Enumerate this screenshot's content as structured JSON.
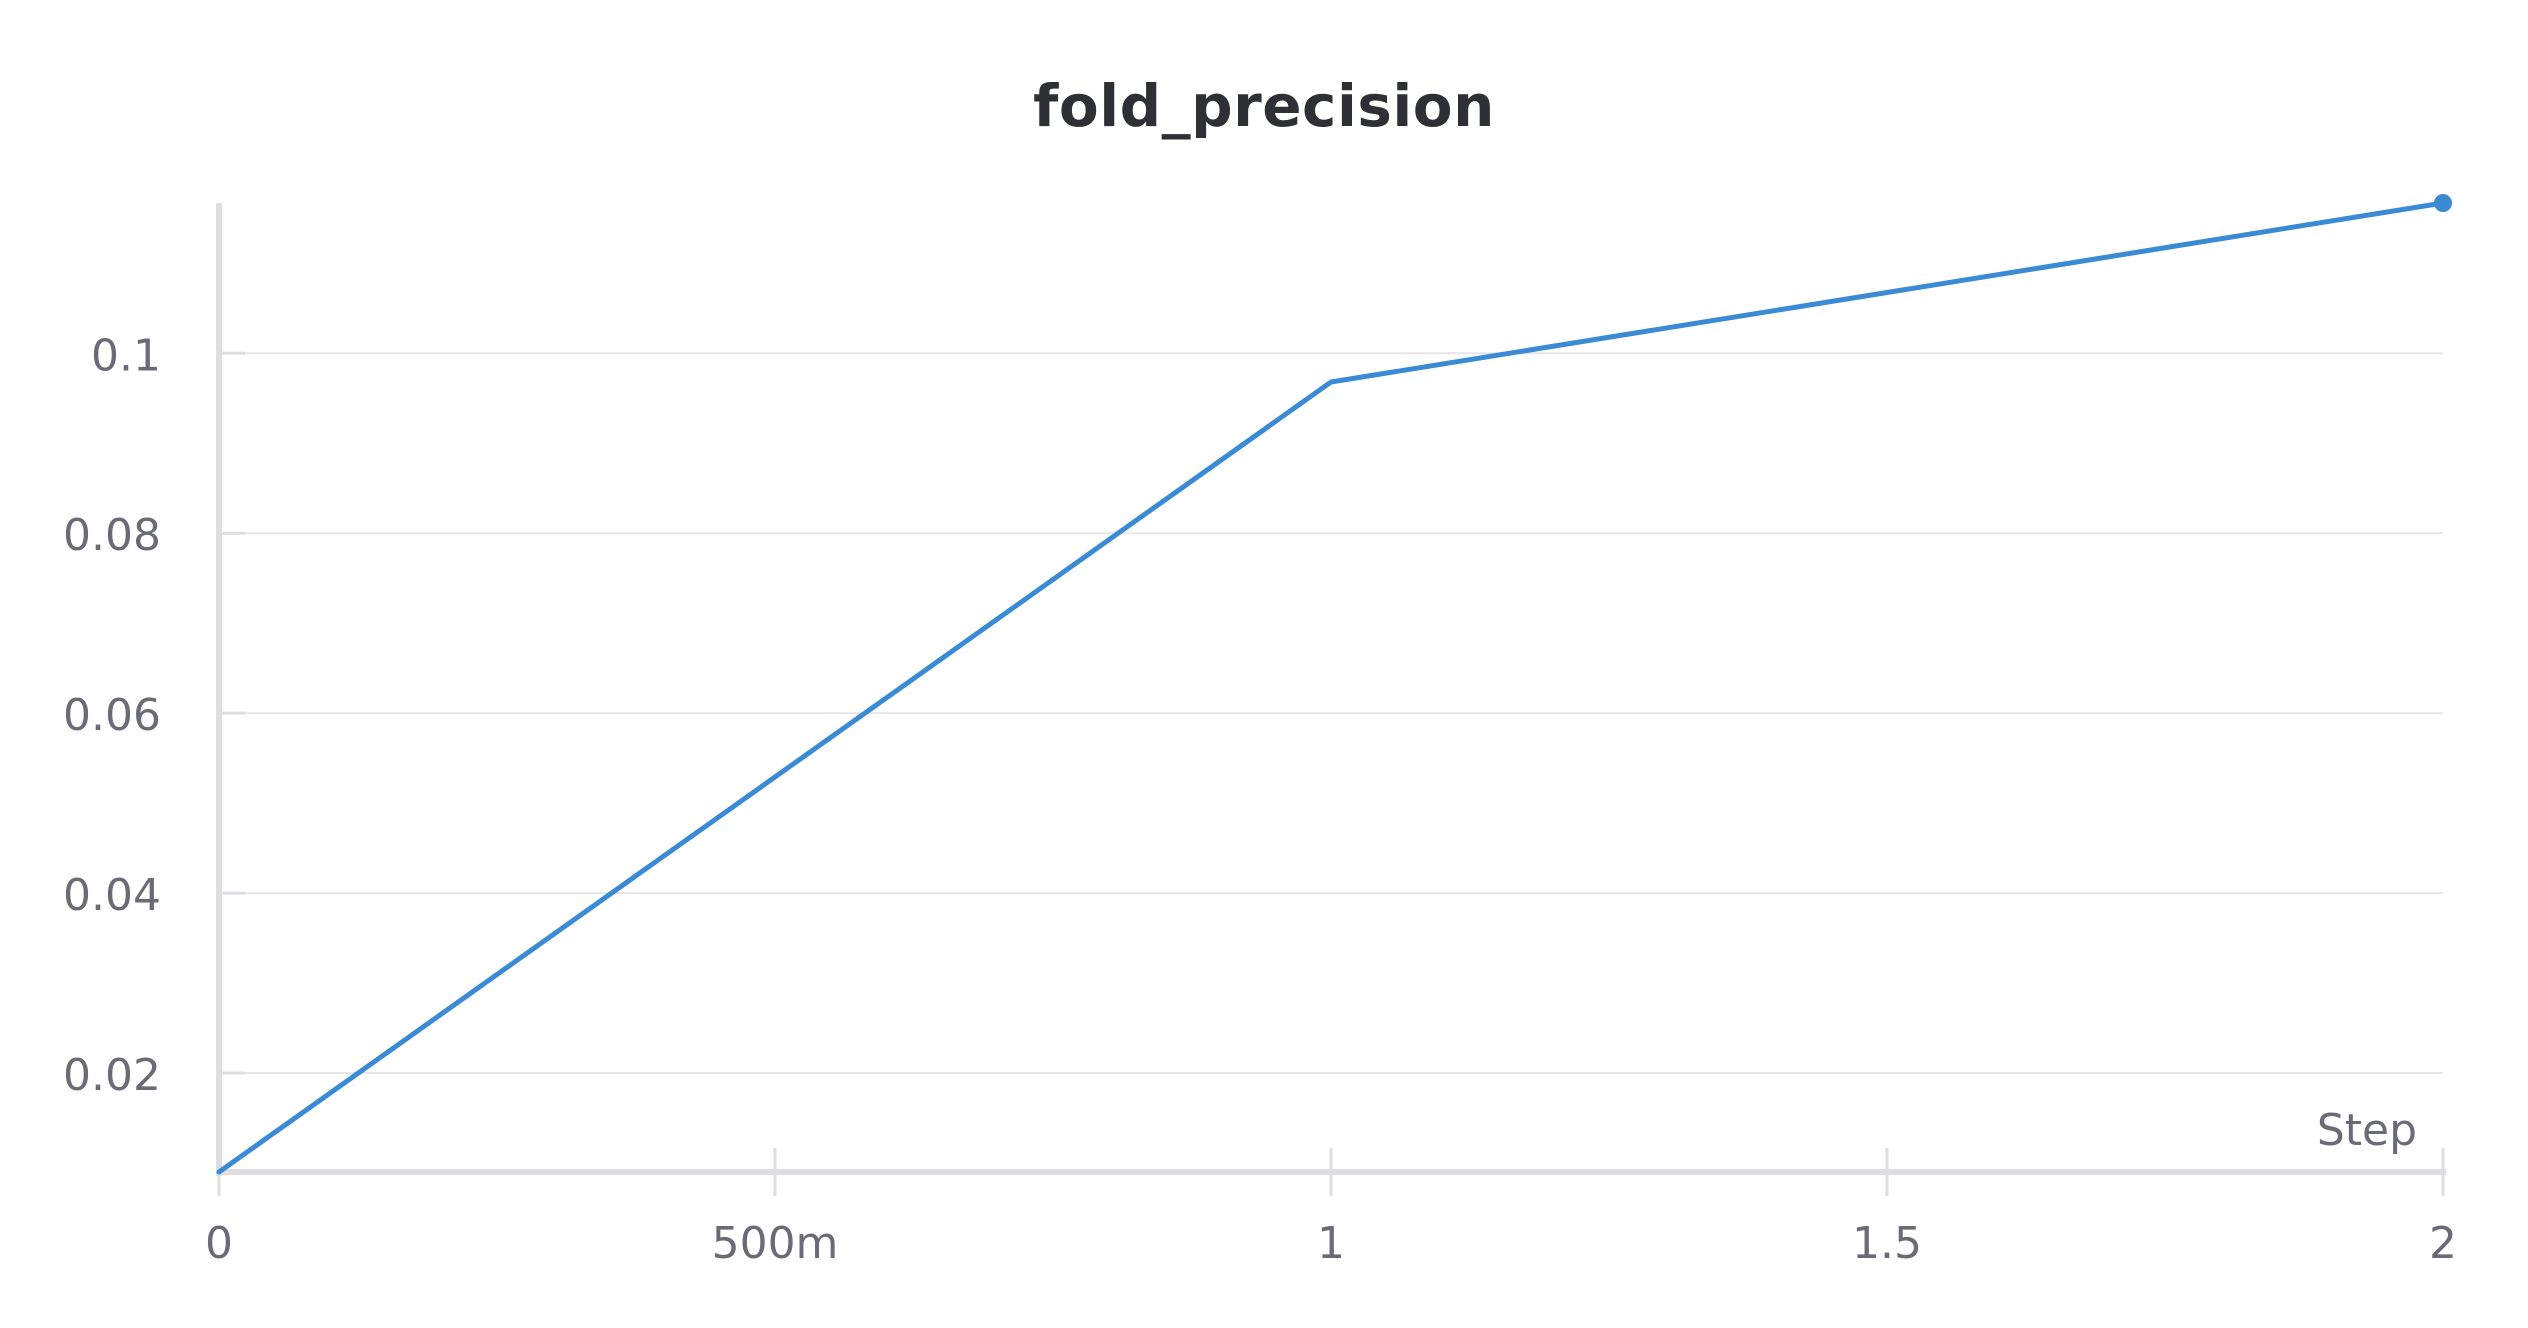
{
  "chart_data": {
    "type": "line",
    "title": "fold_precision",
    "xlabel": "Step",
    "ylabel": "",
    "x": [
      0,
      1,
      2
    ],
    "series": [
      {
        "values": [
          0.009,
          0.0968,
          0.1167
        ]
      }
    ],
    "xlim": [
      0,
      2
    ],
    "ylim": [
      0.009,
      0.1167
    ],
    "x_ticks": [
      0,
      0.5,
      1,
      1.5,
      2
    ],
    "x_tick_labels": [
      "0",
      "500m",
      "1",
      "1.5",
      "2"
    ],
    "y_ticks": [
      0.02,
      0.04,
      0.06,
      0.08,
      0.1
    ],
    "y_tick_labels": [
      "0.02",
      "0.04",
      "0.06",
      "0.08",
      "0.1"
    ],
    "grid": true,
    "legend": "none",
    "colors": {
      "series": "#3b8bd4",
      "grid": "#e6e6e9",
      "axis": "#dddde2",
      "tick_label": "#6b6b78",
      "title": "#2f3035"
    }
  }
}
